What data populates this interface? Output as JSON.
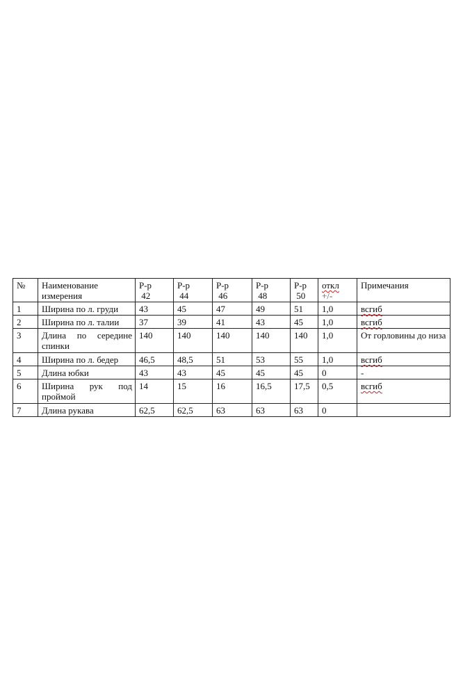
{
  "table": {
    "headers": [
      "№",
      "Наименование измерения",
      "Р-р 42",
      "Р-р 44",
      "Р-р 46",
      "Р-р 48",
      "Р-р 50",
      "откл +/-",
      "Примечания"
    ],
    "header_parts": {
      "name": [
        "Наименование",
        "измерения"
      ],
      "sizes": [
        [
          "Р-р",
          "42"
        ],
        [
          "Р-р",
          "44"
        ],
        [
          "Р-р",
          "46"
        ],
        [
          "Р-р",
          "48"
        ],
        [
          "Р-р",
          "50"
        ]
      ],
      "dev": [
        "откл",
        "+/-"
      ]
    },
    "rows": [
      {
        "no": "1",
        "name": "Ширина по л. груди",
        "v": [
          "43",
          "45",
          "47",
          "49",
          "51"
        ],
        "dev": "1,0",
        "note": "всгиб"
      },
      {
        "no": "2",
        "name": "Ширина по л. талии",
        "v": [
          "37",
          "39",
          "41",
          "43",
          "45"
        ],
        "dev": "1,0",
        "note": "всгиб"
      },
      {
        "no": "3",
        "name": "Длина по середине спинки",
        "v": [
          "140",
          "140",
          "140",
          "140",
          "140"
        ],
        "dev": "1,0",
        "note": "От горловины до низа"
      },
      {
        "no": "4",
        "name": "Ширина по л. бедер",
        "v": [
          "46,5",
          "48,5",
          "51",
          "53",
          "55"
        ],
        "dev": "1,0",
        "note": "всгиб"
      },
      {
        "no": "5",
        "name": "Длина юбки",
        "v": [
          "43",
          "43",
          "45",
          "45",
          "45"
        ],
        "dev": "0",
        "note": "-"
      },
      {
        "no": "6",
        "name": "Ширина рук под проймой",
        "v": [
          "14",
          "15",
          "16",
          "16,5",
          "17,5"
        ],
        "dev": "0,5",
        "note": "всгиб"
      },
      {
        "no": "7",
        "name": "Длина рукава",
        "v": [
          "62,5",
          "62,5",
          "63",
          "63",
          "63"
        ],
        "dev": "0",
        "note": ""
      }
    ]
  }
}
